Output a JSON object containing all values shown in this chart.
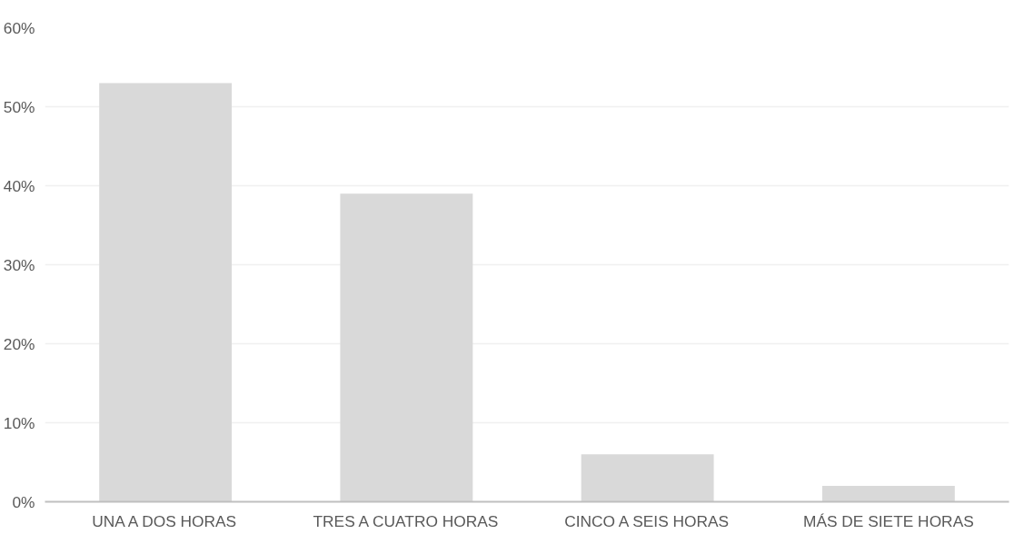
{
  "chart_data": {
    "type": "bar",
    "categories": [
      "UNA A DOS HORAS",
      "TRES A CUATRO HORAS",
      "CINCO A SEIS HORAS",
      "MÁS DE SIETE HORAS"
    ],
    "values": [
      53,
      39,
      6,
      2
    ],
    "color": "#d9d9d9",
    "ylim": [
      0,
      60
    ],
    "yticks": [
      {
        "value": 0,
        "label": "0%"
      },
      {
        "value": 10,
        "label": "10%"
      },
      {
        "value": 20,
        "label": "20%"
      },
      {
        "value": 30,
        "label": "30%"
      },
      {
        "value": 40,
        "label": "40%"
      },
      {
        "value": 50,
        "label": "50%"
      },
      {
        "value": 60,
        "label": "60%"
      }
    ],
    "grid": "y"
  }
}
